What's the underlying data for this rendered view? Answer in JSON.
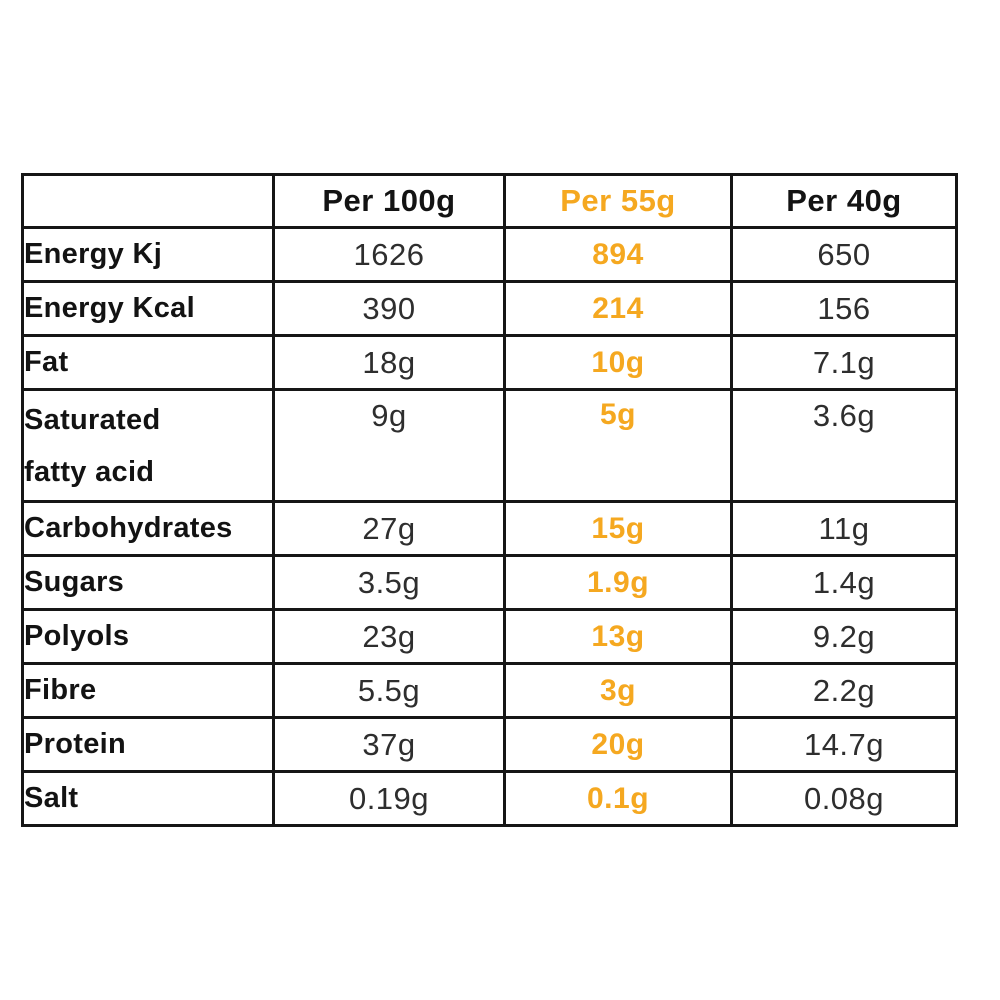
{
  "page": {
    "background_color": "#ffffff",
    "accent_color": "#F5A820",
    "border_color": "#161616",
    "text_color": "#131313"
  },
  "table": {
    "columns": [
      {
        "label": ""
      },
      {
        "label": "Per 100g",
        "highlight": false
      },
      {
        "label": "Per 55g",
        "highlight": true
      },
      {
        "label": "Per 40g",
        "highlight": false
      }
    ],
    "rows": [
      {
        "label": "Energy Kj",
        "per_100g": "1626",
        "per_55g": "894",
        "per_40g": "650"
      },
      {
        "label": "Energy Kcal",
        "per_100g": "390",
        "per_55g": "214",
        "per_40g": "156"
      },
      {
        "label": "Fat",
        "per_100g": "18g",
        "per_55g": "10g",
        "per_40g": "7.1g"
      },
      {
        "label": "Saturated fatty acid",
        "per_100g": "9g",
        "per_55g": "5g",
        "per_40g": "3.6g"
      },
      {
        "label": "Carbohydrates",
        "per_100g": "27g",
        "per_55g": "15g",
        "per_40g": "11g"
      },
      {
        "label": "Sugars",
        "per_100g": "3.5g",
        "per_55g": "1.9g",
        "per_40g": "1.4g"
      },
      {
        "label": "Polyols",
        "per_100g": "23g",
        "per_55g": "13g",
        "per_40g": "9.2g"
      },
      {
        "label": "Fibre",
        "per_100g": "5.5g",
        "per_55g": "3g",
        "per_40g": "2.2g"
      },
      {
        "label": "Protein",
        "per_100g": "37g",
        "per_55g": "20g",
        "per_40g": "14.7g"
      },
      {
        "label": "Salt",
        "per_100g": "0.19g",
        "per_55g": "0.1g",
        "per_40g": "0.08g"
      }
    ]
  }
}
